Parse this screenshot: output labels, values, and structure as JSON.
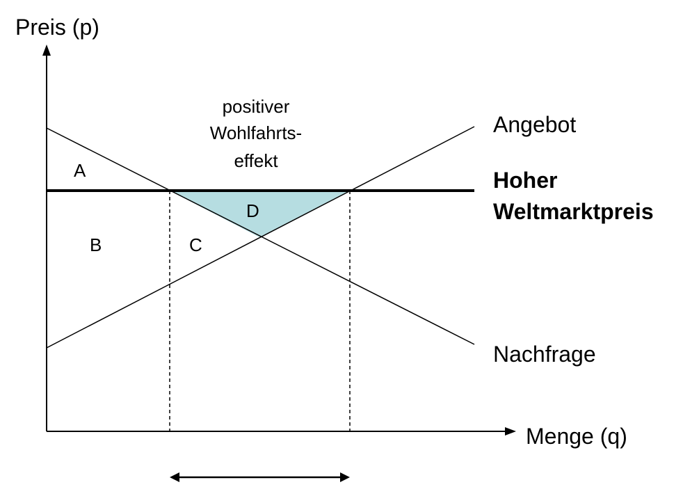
{
  "axes": {
    "y_label": "Preis (p)",
    "x_label": "Menge (q)"
  },
  "curves": {
    "supply_label": "Angebot",
    "demand_label": "Nachfrage",
    "world_price_label_line1": "Hoher",
    "world_price_label_line2": "Weltmarktpreis"
  },
  "regions": {
    "a": "A",
    "b": "B",
    "c": "C",
    "d": "D"
  },
  "annotation": {
    "line1": "positiver",
    "line2": "Wohlfahrts-",
    "line3": "effekt"
  },
  "colors": {
    "region_d_fill": "#b6dde1",
    "line": "#000000"
  }
}
